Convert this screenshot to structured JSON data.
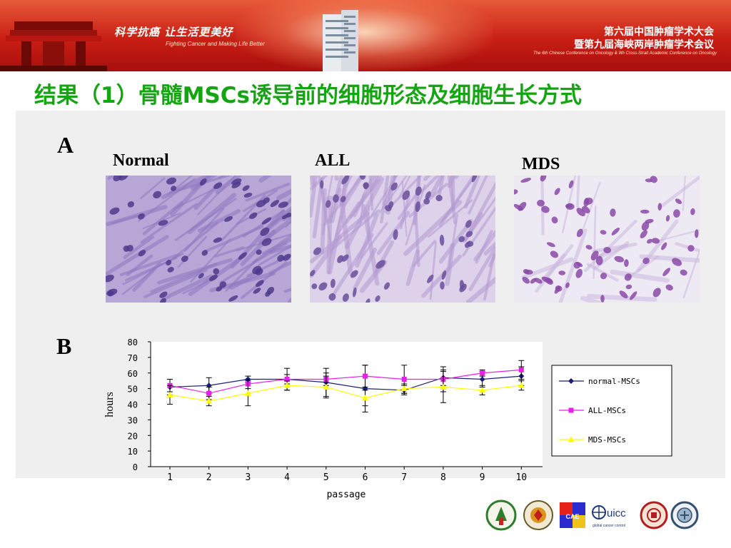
{
  "banner": {
    "slogan_zh": "科学抗癌  让生活更美好",
    "slogan_en": "Fighting Cancer and Making Life Better",
    "conference_line1": "第六届中国肿瘤学术大会",
    "conference_line2": "暨第九届海峡两岸肿瘤学术会议",
    "conference_en": "The 6th Chinese Conference on Oncology & 9th Cross-Strait Academic Conference on Oncology"
  },
  "slide": {
    "title": "结果（1）骨髓MSCs诱导前的细胞形态及细胞生长方式",
    "section_a": "A",
    "section_b": "B"
  },
  "micrographs": [
    {
      "caption": "Normal"
    },
    {
      "caption": "ALL"
    },
    {
      "caption": "MDS"
    }
  ],
  "chart_data": {
    "type": "line",
    "title": "",
    "xlabel": "passage",
    "ylabel": "hours",
    "x": [
      1,
      2,
      3,
      4,
      5,
      6,
      7,
      8,
      9,
      10
    ],
    "ylim": [
      0,
      80
    ],
    "yticks": [
      0,
      10,
      20,
      30,
      40,
      50,
      60,
      70,
      80
    ],
    "grid": false,
    "legend": "right",
    "series": [
      {
        "name": "normal-MSCs",
        "color": "#1b1f7a",
        "marker": "diamond",
        "values": [
          51,
          52,
          56,
          56,
          54,
          50,
          49,
          57,
          56,
          58
        ],
        "error": [
          5,
          5,
          2,
          7,
          9,
          15,
          3,
          5,
          5,
          6
        ]
      },
      {
        "name": "ALL-MSCs",
        "color": "#e620e6",
        "marker": "square",
        "values": [
          52,
          47,
          53,
          56,
          56,
          58,
          56,
          56,
          60,
          62
        ],
        "error": [
          4,
          4,
          3,
          3,
          4,
          7,
          9,
          8,
          2,
          6
        ]
      },
      {
        "name": "MDS-MSCs",
        "color": "#ffff00",
        "marker": "triangle",
        "values": [
          46,
          42,
          47,
          52,
          51,
          44,
          50,
          51,
          49,
          52
        ],
        "error": [
          6,
          3,
          8,
          3,
          7,
          5,
          3,
          10,
          3,
          3
        ]
      }
    ]
  },
  "footer": {
    "logos": [
      "cancer-society-logo",
      "cancer-association-logo",
      "cae-logo",
      "uicc-logo",
      "university-seal-logo",
      "institution-seal-logo"
    ],
    "uicc_text": "uicc",
    "uicc_sub": "global cancer control",
    "cae_text": "CAE"
  }
}
